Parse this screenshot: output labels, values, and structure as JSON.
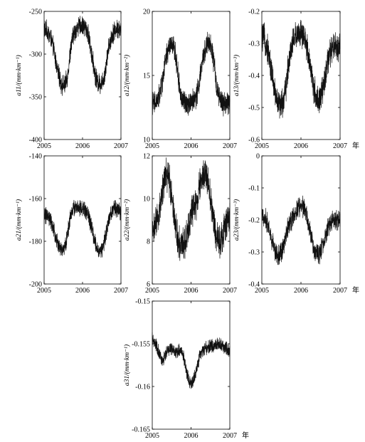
{
  "chart_data": [
    {
      "id": "a11",
      "type": "line",
      "ylabel": "a11/(mm·km⁻¹)",
      "ylim": [
        -400,
        -250
      ],
      "yticks": [
        -400,
        -350,
        -300,
        -250
      ],
      "ytick_labels": [
        "-400",
        "-350",
        "-300",
        "-250"
      ],
      "xlim": [
        2005,
        2007
      ],
      "xticks": [
        2005,
        2006,
        2007
      ],
      "xtick_labels": [
        "2005",
        "2006",
        "2007"
      ],
      "xunit": "",
      "series": [
        {
          "x": [
            2005.0,
            2005.05,
            2005.1,
            2005.15,
            2005.2,
            2005.25,
            2005.3,
            2005.35,
            2005.4,
            2005.45,
            2005.5,
            2005.55,
            2005.6,
            2005.65,
            2005.7,
            2005.75,
            2005.8,
            2005.85,
            2005.9,
            2005.95,
            2006.0,
            2006.05,
            2006.1,
            2006.15,
            2006.2,
            2006.25,
            2006.3,
            2006.35,
            2006.4,
            2006.45,
            2006.5,
            2006.55,
            2006.6,
            2006.65,
            2006.7,
            2006.75,
            2006.8,
            2006.85,
            2006.9,
            2006.95,
            2007.0
          ],
          "y": [
            -270,
            -272,
            -275,
            -278,
            -285,
            -295,
            -308,
            -318,
            -328,
            -335,
            -337,
            -336,
            -328,
            -310,
            -292,
            -280,
            -273,
            -270,
            -268,
            -267,
            -267,
            -268,
            -270,
            -278,
            -290,
            -303,
            -317,
            -328,
            -333,
            -335,
            -334,
            -328,
            -316,
            -300,
            -288,
            -280,
            -275,
            -272,
            -270,
            -270,
            -272
          ],
          "noise": 18
        }
      ]
    },
    {
      "id": "a12",
      "type": "line",
      "ylabel": "a12/(mm·km⁻²)",
      "ylim": [
        10,
        20
      ],
      "yticks": [
        10,
        15,
        20
      ],
      "ytick_labels": [
        "10",
        "15",
        "20"
      ],
      "xlim": [
        2005,
        2007
      ],
      "xticks": [
        2005,
        2006,
        2007
      ],
      "xtick_labels": [
        "2005",
        "2006",
        "2007"
      ],
      "xunit": "",
      "series": [
        {
          "x": [
            2005.0,
            2005.05,
            2005.1,
            2005.15,
            2005.2,
            2005.25,
            2005.3,
            2005.35,
            2005.4,
            2005.45,
            2005.5,
            2005.55,
            2005.6,
            2005.65,
            2005.7,
            2005.75,
            2005.8,
            2005.85,
            2005.9,
            2005.95,
            2006.0,
            2006.05,
            2006.1,
            2006.15,
            2006.2,
            2006.25,
            2006.3,
            2006.35,
            2006.4,
            2006.45,
            2006.5,
            2006.55,
            2006.6,
            2006.65,
            2006.7,
            2006.75,
            2006.8,
            2006.85,
            2006.9,
            2006.95,
            2007.0
          ],
          "y": [
            12.9,
            12.8,
            12.9,
            13.1,
            13.6,
            14.3,
            15.3,
            16.2,
            16.9,
            17.3,
            17.4,
            17.2,
            16.6,
            15.4,
            14.1,
            13.3,
            13.0,
            12.9,
            12.9,
            12.9,
            13.0,
            13.0,
            13.2,
            13.5,
            14.2,
            15.2,
            16.1,
            16.9,
            17.4,
            17.5,
            17.3,
            16.8,
            15.7,
            14.4,
            13.5,
            13.1,
            12.9,
            12.8,
            12.8,
            12.9,
            12.9
          ],
          "noise": 1.4
        }
      ]
    },
    {
      "id": "a13",
      "type": "line",
      "ylabel": "a13/(mm·km⁻³)",
      "ylim": [
        -0.6,
        -0.2
      ],
      "yticks": [
        -0.6,
        -0.5,
        -0.4,
        -0.3,
        -0.2
      ],
      "ytick_labels": [
        "-0.6",
        "-0.5",
        "-0.4",
        "-0.3",
        "-0.2"
      ],
      "xlim": [
        2005,
        2007
      ],
      "xticks": [
        2005,
        2006,
        2007
      ],
      "xtick_labels": [
        "2005",
        "2006",
        "2007"
      ],
      "xunit": "年",
      "series": [
        {
          "x": [
            2005.0,
            2005.05,
            2005.1,
            2005.15,
            2005.2,
            2005.25,
            2005.3,
            2005.35,
            2005.4,
            2005.45,
            2005.5,
            2005.55,
            2005.6,
            2005.65,
            2005.7,
            2005.75,
            2005.8,
            2005.85,
            2005.9,
            2005.95,
            2006.0,
            2006.05,
            2006.1,
            2006.15,
            2006.2,
            2006.25,
            2006.3,
            2006.35,
            2006.4,
            2006.45,
            2006.5,
            2006.55,
            2006.6,
            2006.65,
            2006.7,
            2006.75,
            2006.8,
            2006.85,
            2006.9,
            2006.95,
            2007.0
          ],
          "y": [
            -0.28,
            -0.28,
            -0.3,
            -0.32,
            -0.35,
            -0.39,
            -0.43,
            -0.46,
            -0.48,
            -0.49,
            -0.49,
            -0.48,
            -0.45,
            -0.4,
            -0.35,
            -0.31,
            -0.29,
            -0.28,
            -0.27,
            -0.27,
            -0.27,
            -0.28,
            -0.29,
            -0.31,
            -0.34,
            -0.38,
            -0.42,
            -0.45,
            -0.47,
            -0.48,
            -0.47,
            -0.45,
            -0.42,
            -0.38,
            -0.35,
            -0.33,
            -0.32,
            -0.31,
            -0.31,
            -0.31,
            -0.3
          ],
          "noise": 0.07
        }
      ]
    },
    {
      "id": "a21",
      "type": "line",
      "ylabel": "a21/(mm·km⁻¹)",
      "ylim": [
        -200,
        -140
      ],
      "yticks": [
        -200,
        -180,
        -160,
        -140
      ],
      "ytick_labels": [
        "-200",
        "-180",
        "-160",
        "-140"
      ],
      "xlim": [
        2005,
        2007
      ],
      "xticks": [
        2005,
        2006,
        2007
      ],
      "xtick_labels": [
        "2005",
        "2006",
        "2007"
      ],
      "xunit": "",
      "series": [
        {
          "x": [
            2005.0,
            2005.05,
            2005.1,
            2005.15,
            2005.2,
            2005.25,
            2005.3,
            2005.35,
            2005.4,
            2005.45,
            2005.5,
            2005.55,
            2005.6,
            2005.65,
            2005.7,
            2005.75,
            2005.8,
            2005.85,
            2005.9,
            2005.95,
            2006.0,
            2006.05,
            2006.1,
            2006.15,
            2006.2,
            2006.25,
            2006.3,
            2006.35,
            2006.4,
            2006.45,
            2006.5,
            2006.55,
            2006.6,
            2006.65,
            2006.7,
            2006.75,
            2006.8,
            2006.85,
            2006.9,
            2006.95,
            2007.0
          ],
          "y": [
            -167,
            -168,
            -169,
            -170,
            -172,
            -175,
            -178,
            -181,
            -183,
            -184,
            -184,
            -182,
            -178,
            -172,
            -167,
            -165,
            -164,
            -164,
            -165,
            -165,
            -165,
            -165,
            -166,
            -168,
            -171,
            -175,
            -179,
            -182,
            -184,
            -185,
            -184,
            -182,
            -178,
            -173,
            -168,
            -166,
            -165,
            -165,
            -165,
            -166,
            -166
          ],
          "noise": 6
        }
      ]
    },
    {
      "id": "a22",
      "type": "line",
      "ylabel": "a22/(mm·km⁻²)",
      "ylim": [
        6,
        12
      ],
      "yticks": [
        6,
        8,
        10,
        12
      ],
      "ytick_labels": [
        "6",
        "8",
        "10",
        "12"
      ],
      "xlim": [
        2005,
        2007
      ],
      "xticks": [
        2005,
        2006,
        2007
      ],
      "xtick_labels": [
        "2005",
        "2006",
        "2007"
      ],
      "xunit": "",
      "series": [
        {
          "x": [
            2005.0,
            2005.05,
            2005.1,
            2005.15,
            2005.2,
            2005.25,
            2005.3,
            2005.35,
            2005.4,
            2005.45,
            2005.5,
            2005.55,
            2005.6,
            2005.65,
            2005.7,
            2005.75,
            2005.8,
            2005.85,
            2005.9,
            2005.95,
            2006.0,
            2006.05,
            2006.1,
            2006.15,
            2006.2,
            2006.25,
            2006.3,
            2006.35,
            2006.4,
            2006.45,
            2006.5,
            2006.55,
            2006.6,
            2006.65,
            2006.7,
            2006.75,
            2006.8,
            2006.85,
            2006.9,
            2006.95,
            2007.0
          ],
          "y": [
            8.6,
            8.6,
            8.8,
            9.1,
            9.6,
            10.2,
            10.8,
            11.1,
            11.1,
            10.8,
            10.2,
            9.5,
            8.8,
            8.2,
            7.9,
            7.8,
            7.9,
            8.1,
            8.4,
            8.8,
            9.3,
            9.5,
            9.6,
            9.8,
            10.3,
            10.8,
            11.1,
            11.2,
            11.0,
            10.6,
            10.0,
            9.4,
            8.8,
            8.3,
            8.0,
            8.0,
            8.2,
            8.5,
            8.8,
            9.0,
            9.0
          ],
          "noise": 1.2
        }
      ]
    },
    {
      "id": "a23",
      "type": "line",
      "ylabel": "a23/(mm·km⁻³)",
      "ylim": [
        -0.4,
        0
      ],
      "yticks": [
        -0.4,
        -0.3,
        -0.2,
        -0.1,
        0
      ],
      "ytick_labels": [
        "-0.4",
        "-0.3",
        "-0.2",
        "-0.1",
        "0"
      ],
      "xlim": [
        2005,
        2007
      ],
      "xticks": [
        2005,
        2006,
        2007
      ],
      "xtick_labels": [
        "2005",
        "2006",
        "2007"
      ],
      "xunit": "年",
      "series": [
        {
          "x": [
            2005.0,
            2005.05,
            2005.1,
            2005.15,
            2005.2,
            2005.25,
            2005.3,
            2005.35,
            2005.4,
            2005.45,
            2005.5,
            2005.55,
            2005.6,
            2005.65,
            2005.7,
            2005.75,
            2005.8,
            2005.85,
            2005.9,
            2005.95,
            2006.0,
            2006.05,
            2006.1,
            2006.15,
            2006.2,
            2006.25,
            2006.3,
            2006.35,
            2006.4,
            2006.45,
            2006.5,
            2006.55,
            2006.6,
            2006.65,
            2006.7,
            2006.75,
            2006.8,
            2006.85,
            2006.9,
            2006.95,
            2007.0
          ],
          "y": [
            -0.19,
            -0.19,
            -0.2,
            -0.21,
            -0.23,
            -0.26,
            -0.28,
            -0.3,
            -0.31,
            -0.31,
            -0.3,
            -0.28,
            -0.26,
            -0.23,
            -0.21,
            -0.2,
            -0.19,
            -0.18,
            -0.17,
            -0.16,
            -0.16,
            -0.16,
            -0.17,
            -0.19,
            -0.22,
            -0.25,
            -0.28,
            -0.3,
            -0.31,
            -0.31,
            -0.3,
            -0.28,
            -0.26,
            -0.24,
            -0.22,
            -0.21,
            -0.2,
            -0.2,
            -0.2,
            -0.2,
            -0.2
          ],
          "noise": 0.05
        }
      ]
    },
    {
      "id": "a31",
      "type": "line",
      "ylabel": "a31/(mm·km⁻¹)",
      "ylim": [
        -0.165,
        -0.15
      ],
      "yticks": [
        -0.165,
        -0.16,
        -0.155,
        -0.15
      ],
      "ytick_labels": [
        "-0.165",
        "-0.16",
        "-0.155",
        "-0.15"
      ],
      "xlim": [
        2005,
        2007
      ],
      "xticks": [
        2005,
        2006,
        2007
      ],
      "xtick_labels": [
        "2005",
        "2006",
        "2007"
      ],
      "xunit": "年",
      "series": [
        {
          "x": [
            2005.0,
            2005.05,
            2005.1,
            2005.15,
            2005.2,
            2005.25,
            2005.3,
            2005.35,
            2005.4,
            2005.45,
            2005.5,
            2005.55,
            2005.6,
            2005.65,
            2005.7,
            2005.75,
            2005.8,
            2005.85,
            2005.9,
            2005.95,
            2006.0,
            2006.05,
            2006.1,
            2006.15,
            2006.2,
            2006.25,
            2006.3,
            2006.35,
            2006.4,
            2006.45,
            2006.5,
            2006.55,
            2006.6,
            2006.65,
            2006.7,
            2006.75,
            2006.8,
            2006.85,
            2006.9,
            2006.95,
            2007.0
          ],
          "y": [
            -0.1545,
            -0.1548,
            -0.1552,
            -0.1558,
            -0.1565,
            -0.157,
            -0.1568,
            -0.1562,
            -0.1558,
            -0.1556,
            -0.1556,
            -0.1558,
            -0.156,
            -0.156,
            -0.1558,
            -0.1558,
            -0.1565,
            -0.1575,
            -0.1585,
            -0.1593,
            -0.1597,
            -0.1595,
            -0.1588,
            -0.1578,
            -0.1568,
            -0.1562,
            -0.1558,
            -0.1556,
            -0.1555,
            -0.1554,
            -0.1553,
            -0.1553,
            -0.1552,
            -0.1551,
            -0.155,
            -0.155,
            -0.1551,
            -0.1553,
            -0.1555,
            -0.1558,
            -0.156
          ],
          "noise": 0.0012
        }
      ]
    }
  ]
}
